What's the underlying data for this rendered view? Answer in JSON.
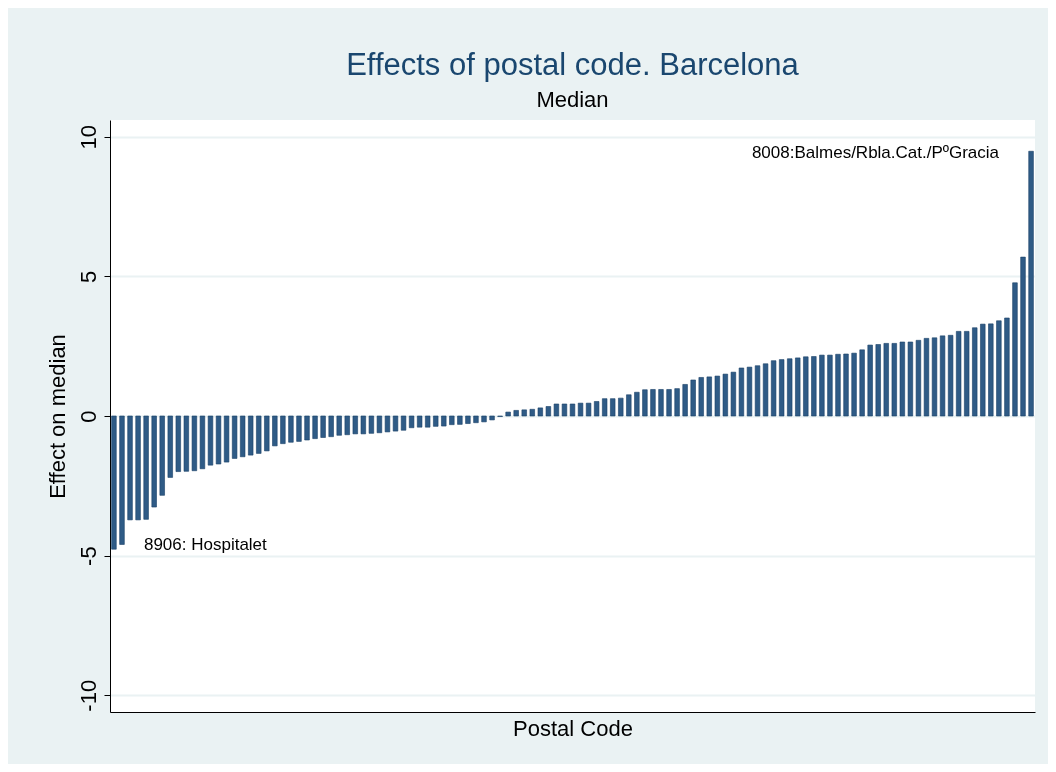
{
  "chart_data": {
    "type": "bar",
    "title": "Effects of postal code. Barcelona",
    "subtitle": "Median",
    "xlabel": "Postal Code",
    "ylabel": "Effect on median",
    "categories": [
      null,
      null,
      null,
      null,
      null,
      null,
      null,
      null,
      null,
      null,
      null,
      null,
      null,
      null,
      null,
      null,
      null,
      null,
      null,
      null,
      null,
      null,
      null,
      null,
      null,
      null,
      null,
      null,
      null,
      null,
      null,
      null,
      null,
      null,
      null,
      null,
      null,
      null,
      null,
      null,
      null,
      null,
      null,
      null,
      null,
      null,
      null,
      null,
      null,
      null,
      null,
      null,
      null,
      null,
      null,
      null,
      null,
      null,
      null,
      null,
      null,
      null,
      null,
      null,
      null,
      null,
      null,
      null,
      null,
      null,
      null,
      null,
      null,
      null,
      null,
      null,
      null,
      null,
      null,
      null,
      null,
      null,
      null,
      null,
      null,
      null,
      null,
      null,
      null,
      null,
      null,
      null,
      null,
      null,
      null,
      null,
      null,
      null,
      null,
      null,
      null,
      null,
      null,
      null,
      null,
      null,
      null,
      null,
      null,
      null,
      null,
      null,
      null,
      null,
      null
    ],
    "values": [
      -4.77,
      -4.6,
      -3.72,
      -3.72,
      -3.7,
      -3.26,
      -2.84,
      -2.2,
      -1.99,
      -1.98,
      -1.96,
      -1.89,
      -1.76,
      -1.72,
      -1.65,
      -1.52,
      -1.46,
      -1.4,
      -1.34,
      -1.25,
      -1.07,
      -0.99,
      -0.94,
      -0.91,
      -0.86,
      -0.81,
      -0.77,
      -0.74,
      -0.69,
      -0.67,
      -0.64,
      -0.64,
      -0.62,
      -0.6,
      -0.57,
      -0.54,
      -0.51,
      -0.42,
      -0.4,
      -0.4,
      -0.37,
      -0.36,
      -0.31,
      -0.3,
      -0.27,
      -0.24,
      -0.21,
      -0.14,
      -0.02,
      0.14,
      0.2,
      0.22,
      0.24,
      0.29,
      0.34,
      0.43,
      0.43,
      0.43,
      0.46,
      0.46,
      0.52,
      0.62,
      0.62,
      0.64,
      0.76,
      0.85,
      0.94,
      0.95,
      0.95,
      0.95,
      0.98,
      1.13,
      1.29,
      1.38,
      1.4,
      1.43,
      1.5,
      1.57,
      1.72,
      1.75,
      1.8,
      1.87,
      1.98,
      2.02,
      2.05,
      2.08,
      2.12,
      2.13,
      2.18,
      2.18,
      2.21,
      2.22,
      2.25,
      2.37,
      2.54,
      2.56,
      2.6,
      2.6,
      2.65,
      2.65,
      2.71,
      2.78,
      2.8,
      2.87,
      2.89,
      3.03,
      3.03,
      3.16,
      3.29,
      3.3,
      3.41,
      3.51,
      4.77,
      5.69,
      9.48
    ],
    "color": "#2f5b86",
    "ylim": [
      -10.6,
      10.6
    ],
    "yticks": [
      -10,
      -5,
      0,
      5,
      10
    ],
    "grid": "y",
    "annotations": [
      "8906: Hospitalet",
      "8008:Balmes/Rbla.Cat./PºGracia"
    ]
  }
}
